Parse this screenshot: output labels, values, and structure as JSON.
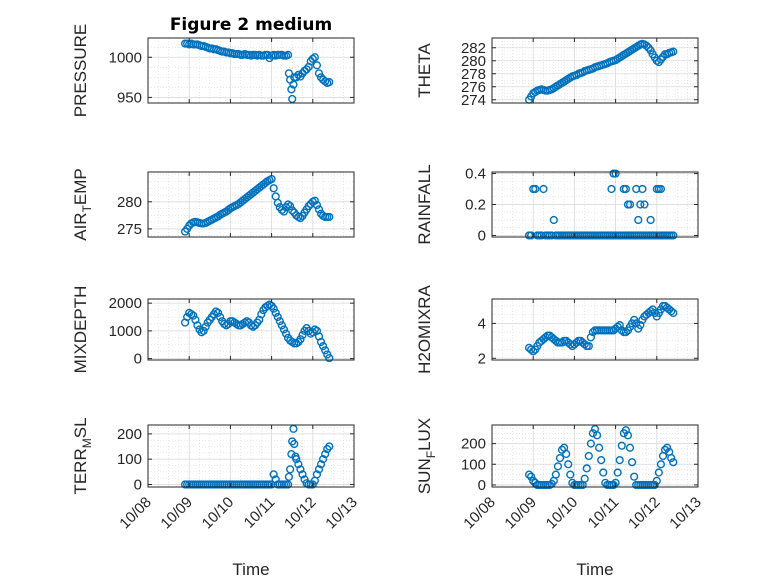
{
  "figure": {
    "title": "Figure 2 medium",
    "xlabel": "Time",
    "x_tick_labels": [
      "10/08",
      "10/09",
      "10/10",
      "10/11",
      "10/12",
      "10/13"
    ]
  },
  "colors": {
    "marker": "#0072BD",
    "axis": "#262626",
    "grid": "#d9d9d9"
  },
  "chart_data": [
    {
      "type": "scatter",
      "ylabel": "PRESSURE",
      "ylabel_sub": "",
      "ylabel_tail": "",
      "ylim": [
        943,
        1024
      ],
      "yticks": [
        950,
        1000
      ],
      "x": [
        8.9,
        8.95,
        9.0,
        9.05,
        9.1,
        9.15,
        9.2,
        9.25,
        9.3,
        9.35,
        9.4,
        9.45,
        9.5,
        9.55,
        9.6,
        9.65,
        9.7,
        9.75,
        9.8,
        9.85,
        9.9,
        9.95,
        10.0,
        10.05,
        10.1,
        10.15,
        10.2,
        10.25,
        10.3,
        10.35,
        10.4,
        10.45,
        10.5,
        10.55,
        10.6,
        10.65,
        10.7,
        10.75,
        10.8,
        10.85,
        10.9,
        10.95,
        11.0,
        11.05,
        11.1,
        11.15,
        11.2,
        11.25,
        11.3,
        11.35,
        11.4,
        11.42,
        11.45,
        11.48,
        11.5,
        11.53,
        11.55,
        11.6,
        11.65,
        11.7,
        11.75,
        11.8,
        11.85,
        11.9,
        11.95,
        12.0,
        12.05,
        12.1,
        12.15,
        12.2,
        12.25,
        12.3,
        12.35,
        12.4
      ],
      "y": [
        1017,
        1017,
        1016,
        1017,
        1016,
        1016,
        1016,
        1015,
        1014,
        1014,
        1013,
        1012,
        1011,
        1011,
        1010,
        1010,
        1009,
        1008,
        1007,
        1007,
        1006,
        1006,
        1005,
        1005,
        1004,
        1004,
        1004,
        1003,
        1003,
        1004,
        1003,
        1003,
        1002,
        1003,
        1003,
        1002,
        1003,
        1002,
        1002,
        1003,
        1003,
        999,
        1002,
        1003,
        1002,
        1003,
        1003,
        1003,
        1002,
        1002,
        1003,
        980,
        972,
        960,
        948,
        966,
        975,
        975,
        978,
        976,
        980,
        983,
        985,
        988,
        995,
        998,
        1000,
        990,
        980,
        975,
        972,
        970,
        968,
        969
      ]
    },
    {
      "type": "scatter",
      "ylabel": "THETA",
      "ylabel_sub": "",
      "ylabel_tail": "",
      "ylim": [
        273.5,
        283.5
      ],
      "yticks": [
        274,
        276,
        278,
        280,
        282
      ],
      "x": [
        8.9,
        8.95,
        9.0,
        9.05,
        9.1,
        9.15,
        9.2,
        9.25,
        9.3,
        9.35,
        9.4,
        9.45,
        9.5,
        9.55,
        9.6,
        9.65,
        9.7,
        9.75,
        9.8,
        9.85,
        9.9,
        9.95,
        10.0,
        10.05,
        10.1,
        10.15,
        10.2,
        10.25,
        10.3,
        10.35,
        10.4,
        10.45,
        10.5,
        10.55,
        10.6,
        10.65,
        10.7,
        10.75,
        10.8,
        10.85,
        10.9,
        10.95,
        11.0,
        11.05,
        11.1,
        11.15,
        11.2,
        11.25,
        11.3,
        11.35,
        11.4,
        11.45,
        11.5,
        11.55,
        11.6,
        11.65,
        11.7,
        11.75,
        11.8,
        11.85,
        11.9,
        11.95,
        12.0,
        12.05,
        12.1,
        12.15,
        12.2,
        12.25,
        12.3,
        12.35,
        12.4
      ],
      "y": [
        274,
        274.5,
        275,
        275.2,
        275.4,
        275.5,
        275.6,
        275.5,
        275.4,
        275.4,
        275.5,
        275.6,
        275.8,
        276,
        276.2,
        276.4,
        276.6,
        276.8,
        277,
        277.2,
        277.4,
        277.6,
        277.7,
        277.8,
        278,
        278.1,
        278.2,
        278.4,
        278.5,
        278.6,
        278.7,
        278.8,
        279,
        279.1,
        279.2,
        279.3,
        279.4,
        279.5,
        279.6,
        279.8,
        279.9,
        280,
        280.1,
        280.3,
        280.5,
        280.7,
        280.9,
        281.1,
        281.3,
        281.5,
        281.7,
        281.9,
        282.1,
        282.3,
        282.5,
        282.6,
        282.5,
        282.3,
        282,
        281.6,
        281,
        280.5,
        280,
        279.8,
        280.2,
        280.6,
        281,
        281,
        281.2,
        281.3,
        281.4
      ]
    },
    {
      "type": "scatter",
      "ylabel": "AIR",
      "ylabel_sub": "T",
      "ylabel_tail": "EMP",
      "ylim": [
        273.5,
        285.5
      ],
      "yticks": [
        275,
        280
      ],
      "x": [
        8.9,
        8.95,
        9.0,
        9.05,
        9.1,
        9.15,
        9.2,
        9.25,
        9.3,
        9.35,
        9.4,
        9.45,
        9.5,
        9.55,
        9.6,
        9.65,
        9.7,
        9.75,
        9.8,
        9.85,
        9.9,
        9.95,
        10.0,
        10.05,
        10.1,
        10.15,
        10.2,
        10.25,
        10.3,
        10.35,
        10.4,
        10.45,
        10.5,
        10.55,
        10.6,
        10.65,
        10.7,
        10.75,
        10.8,
        10.85,
        10.9,
        10.95,
        11.0,
        11.05,
        11.1,
        11.15,
        11.2,
        11.25,
        11.3,
        11.35,
        11.4,
        11.45,
        11.5,
        11.55,
        11.6,
        11.65,
        11.7,
        11.75,
        11.8,
        11.85,
        11.9,
        11.95,
        12.0,
        12.05,
        12.1,
        12.15,
        12.2,
        12.25,
        12.3,
        12.35,
        12.4
      ],
      "y": [
        274.5,
        275,
        275.6,
        276,
        276.2,
        276.3,
        276.2,
        276.1,
        276,
        276,
        276.1,
        276.3,
        276.5,
        276.7,
        276.9,
        277.1,
        277.3,
        277.6,
        277.8,
        278,
        278.2,
        278.5,
        278.8,
        279,
        279.2,
        279.4,
        279.6,
        279.9,
        280.2,
        280.5,
        280.8,
        281.1,
        281.4,
        281.7,
        282,
        282.3,
        282.6,
        282.9,
        283.2,
        283.5,
        283.8,
        284,
        284.2,
        282.5,
        281,
        279.8,
        279,
        278.5,
        278.2,
        279,
        279.5,
        279.2,
        278.4,
        278,
        277.5,
        277.2,
        277,
        277.4,
        278,
        278.6,
        279.2,
        279.6,
        280,
        280.2,
        279.4,
        278.6,
        277.8,
        277.4,
        277.2,
        277.2,
        277.2
      ]
    },
    {
      "type": "scatter",
      "ylabel": "RAINFALL",
      "ylabel_sub": "",
      "ylabel_tail": "",
      "ylim": [
        -0.01,
        0.41
      ],
      "yticks": [
        0,
        0.2,
        0.4
      ],
      "x": [
        8.9,
        8.95,
        9.0,
        9.05,
        9.1,
        9.15,
        9.2,
        9.25,
        9.3,
        9.35,
        9.4,
        9.45,
        9.5,
        9.55,
        9.6,
        9.65,
        9.7,
        9.75,
        9.8,
        9.85,
        9.9,
        9.95,
        10.0,
        10.05,
        10.1,
        10.15,
        10.2,
        10.25,
        10.3,
        10.35,
        10.4,
        10.45,
        10.5,
        10.55,
        10.6,
        10.65,
        10.7,
        10.75,
        10.8,
        10.85,
        10.9,
        10.95,
        11.0,
        11.05,
        11.1,
        11.15,
        11.2,
        11.25,
        11.3,
        11.35,
        11.4,
        11.45,
        11.5,
        11.55,
        11.6,
        11.65,
        11.7,
        11.75,
        11.8,
        11.85,
        11.9,
        11.95,
        12.0,
        12.05,
        12.1,
        12.15,
        12.2,
        12.25,
        12.3,
        12.35,
        12.4,
        10.9,
        10.95,
        11.0,
        11.2,
        11.25,
        11.3,
        11.35,
        11.5,
        11.55,
        11.6,
        11.65,
        11.7,
        11.85,
        12.0,
        12.05,
        12.1
      ],
      "y": [
        0,
        0,
        0.3,
        0.3,
        0,
        0,
        0,
        0.3,
        0,
        0,
        0,
        0,
        0.1,
        0,
        0,
        0,
        0,
        0,
        0,
        0,
        0,
        0,
        0,
        0,
        0,
        0,
        0,
        0,
        0,
        0,
        0,
        0,
        0,
        0,
        0,
        0,
        0,
        0,
        0,
        0,
        0,
        0,
        0,
        0,
        0,
        0,
        0,
        0,
        0,
        0,
        0,
        0,
        0,
        0,
        0,
        0,
        0,
        0,
        0,
        0,
        0,
        0,
        0,
        0,
        0,
        0,
        0,
        0,
        0,
        0,
        0,
        0.3,
        0.4,
        0.4,
        0.3,
        0.3,
        0.2,
        0.2,
        0.3,
        0.1,
        0.2,
        0.3,
        0.2,
        0.1,
        0.3,
        0.3,
        0.3
      ]
    },
    {
      "type": "scatter",
      "ylabel": "MIXDEPTH",
      "ylabel_sub": "",
      "ylabel_tail": "",
      "ylim": [
        -50,
        2150
      ],
      "yticks": [
        0,
        1000,
        2000
      ],
      "x": [
        8.9,
        8.95,
        9.0,
        9.05,
        9.1,
        9.15,
        9.2,
        9.25,
        9.3,
        9.35,
        9.4,
        9.45,
        9.5,
        9.55,
        9.6,
        9.65,
        9.7,
        9.75,
        9.8,
        9.85,
        9.9,
        9.95,
        10.0,
        10.05,
        10.1,
        10.15,
        10.2,
        10.25,
        10.3,
        10.35,
        10.4,
        10.45,
        10.5,
        10.55,
        10.6,
        10.65,
        10.7,
        10.75,
        10.8,
        10.85,
        10.9,
        10.95,
        11.0,
        11.05,
        11.1,
        11.15,
        11.2,
        11.25,
        11.3,
        11.35,
        11.4,
        11.45,
        11.5,
        11.55,
        11.6,
        11.65,
        11.7,
        11.75,
        11.8,
        11.85,
        11.9,
        11.95,
        12.0,
        12.05,
        12.1,
        12.15,
        12.2,
        12.25,
        12.3,
        12.35,
        12.4
      ],
      "y": [
        1300,
        1500,
        1650,
        1600,
        1550,
        1400,
        1200,
        1050,
        950,
        1000,
        1150,
        1300,
        1400,
        1500,
        1600,
        1700,
        1650,
        1500,
        1350,
        1250,
        1200,
        1250,
        1350,
        1350,
        1300,
        1250,
        1200,
        1200,
        1250,
        1300,
        1350,
        1300,
        1200,
        1150,
        1200,
        1300,
        1400,
        1600,
        1750,
        1850,
        1900,
        1950,
        1900,
        1800,
        1650,
        1500,
        1350,
        1200,
        1050,
        900,
        750,
        650,
        600,
        550,
        550,
        600,
        700,
        850,
        1000,
        1100,
        1000,
        900,
        950,
        1050,
        1000,
        800,
        600,
        450,
        300,
        150,
        20
      ]
    },
    {
      "type": "scatter",
      "ylabel": "H2OMIXRA",
      "ylabel_sub": "",
      "ylabel_tail": "",
      "ylim": [
        1.9,
        5.4
      ],
      "yticks": [
        2,
        4
      ],
      "x": [
        8.9,
        8.95,
        9.0,
        9.05,
        9.1,
        9.15,
        9.2,
        9.25,
        9.3,
        9.35,
        9.4,
        9.45,
        9.5,
        9.55,
        9.6,
        9.65,
        9.7,
        9.75,
        9.8,
        9.85,
        9.9,
        9.95,
        10.0,
        10.05,
        10.1,
        10.15,
        10.2,
        10.25,
        10.3,
        10.35,
        10.4,
        10.45,
        10.5,
        10.55,
        10.6,
        10.65,
        10.7,
        10.75,
        10.8,
        10.85,
        10.9,
        10.95,
        11.0,
        11.05,
        11.1,
        11.15,
        11.2,
        11.25,
        11.3,
        11.35,
        11.4,
        11.45,
        11.5,
        11.55,
        11.6,
        11.65,
        11.7,
        11.75,
        11.8,
        11.85,
        11.9,
        11.95,
        12.0,
        12.05,
        12.1,
        12.15,
        12.2,
        12.25,
        12.3,
        12.35,
        12.4
      ],
      "y": [
        2.6,
        2.5,
        2.4,
        2.5,
        2.7,
        2.9,
        3.0,
        3.1,
        3.2,
        3.3,
        3.3,
        3.2,
        3.1,
        3.0,
        2.9,
        2.9,
        2.9,
        3.0,
        3.0,
        2.9,
        2.8,
        2.7,
        2.8,
        2.9,
        3.0,
        3.0,
        2.9,
        2.8,
        2.7,
        2.7,
        3.2,
        3.5,
        3.6,
        3.6,
        3.6,
        3.6,
        3.6,
        3.6,
        3.6,
        3.6,
        3.6,
        3.6,
        3.7,
        3.8,
        3.9,
        3.6,
        3.5,
        3.5,
        3.6,
        3.8,
        4.0,
        4.2,
        4.0,
        3.7,
        3.9,
        4.2,
        4.4,
        4.5,
        4.6,
        4.7,
        4.8,
        4.6,
        4.4,
        4.6,
        4.8,
        5.0,
        5.0,
        4.9,
        4.8,
        4.7,
        4.6
      ]
    },
    {
      "type": "scatter",
      "ylabel": "TERR",
      "ylabel_sub": "M",
      "ylabel_tail": "SL",
      "ylim": [
        -10,
        235
      ],
      "yticks": [
        0,
        100,
        200
      ],
      "x": [
        8.9,
        8.95,
        9.0,
        9.05,
        9.1,
        9.15,
        9.2,
        9.25,
        9.3,
        9.35,
        9.4,
        9.45,
        9.5,
        9.55,
        9.6,
        9.65,
        9.7,
        9.75,
        9.8,
        9.85,
        9.9,
        9.95,
        10.0,
        10.05,
        10.1,
        10.15,
        10.2,
        10.25,
        10.3,
        10.35,
        10.4,
        10.45,
        10.5,
        10.55,
        10.6,
        10.65,
        10.7,
        10.75,
        10.8,
        10.85,
        10.9,
        10.95,
        11.0,
        11.05,
        11.1,
        11.15,
        11.2,
        11.25,
        11.3,
        11.35,
        11.4,
        11.42,
        11.45,
        11.48,
        11.5,
        11.53,
        11.55,
        11.58,
        11.6,
        11.65,
        11.7,
        11.75,
        11.8,
        11.85,
        11.9,
        11.95,
        12.0,
        12.05,
        12.1,
        12.15,
        12.2,
        12.25,
        12.3,
        12.35,
        12.4
      ],
      "y": [
        0,
        0,
        0,
        0,
        0,
        0,
        0,
        0,
        0,
        0,
        0,
        0,
        0,
        0,
        0,
        0,
        0,
        0,
        0,
        0,
        0,
        0,
        0,
        0,
        0,
        0,
        0,
        0,
        0,
        0,
        0,
        0,
        0,
        0,
        0,
        0,
        0,
        0,
        0,
        0,
        0,
        0,
        0,
        40,
        20,
        0,
        0,
        0,
        0,
        0,
        0,
        30,
        60,
        120,
        170,
        220,
        160,
        110,
        100,
        80,
        60,
        40,
        20,
        5,
        0,
        0,
        0,
        15,
        40,
        60,
        80,
        100,
        120,
        140,
        150
      ]
    },
    {
      "type": "scatter",
      "ylabel": "SUN",
      "ylabel_sub": "F",
      "ylabel_tail": "LUX",
      "ylim": [
        -10,
        290
      ],
      "yticks": [
        0,
        100,
        200
      ],
      "x": [
        8.9,
        8.95,
        9.0,
        9.05,
        9.1,
        9.15,
        9.2,
        9.25,
        9.3,
        9.35,
        9.4,
        9.45,
        9.5,
        9.55,
        9.6,
        9.65,
        9.7,
        9.75,
        9.8,
        9.85,
        9.9,
        9.95,
        10.0,
        10.05,
        10.1,
        10.15,
        10.2,
        10.25,
        10.3,
        10.35,
        10.4,
        10.45,
        10.5,
        10.55,
        10.6,
        10.65,
        10.7,
        10.75,
        10.8,
        10.85,
        10.9,
        10.95,
        11.0,
        11.05,
        11.1,
        11.15,
        11.2,
        11.25,
        11.3,
        11.35,
        11.4,
        11.45,
        11.5,
        11.55,
        11.6,
        11.65,
        11.7,
        11.75,
        11.8,
        11.85,
        11.9,
        11.95,
        12.0,
        12.05,
        12.1,
        12.15,
        12.2,
        12.25,
        12.3,
        12.35,
        12.4
      ],
      "y": [
        50,
        40,
        20,
        10,
        0,
        0,
        0,
        0,
        0,
        0,
        0,
        5,
        20,
        50,
        90,
        130,
        170,
        180,
        150,
        100,
        50,
        10,
        0,
        0,
        0,
        0,
        0,
        30,
        80,
        140,
        200,
        250,
        270,
        240,
        180,
        120,
        60,
        10,
        0,
        0,
        0,
        0,
        10,
        60,
        120,
        190,
        250,
        265,
        240,
        180,
        110,
        40,
        0,
        0,
        0,
        0,
        0,
        0,
        0,
        0,
        0,
        0,
        20,
        60,
        100,
        140,
        170,
        180,
        160,
        130,
        110
      ]
    }
  ]
}
